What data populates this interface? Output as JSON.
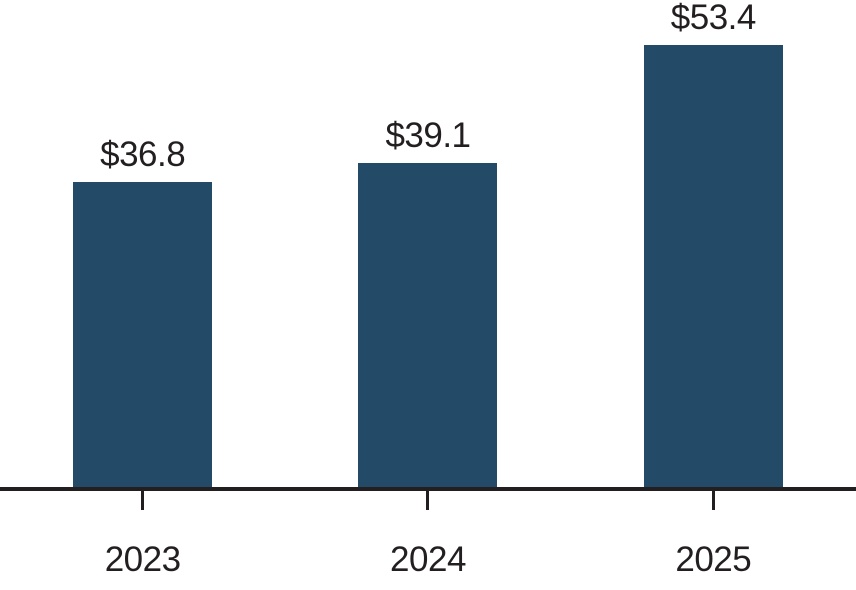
{
  "chart_data": {
    "type": "bar",
    "categories": [
      "2023",
      "2024",
      "2025"
    ],
    "values": [
      36.8,
      39.1,
      53.4
    ],
    "value_labels": [
      "$36.8",
      "$39.1",
      "$53.4"
    ],
    "ylim": [
      0,
      59
    ],
    "grid": false,
    "legend": null,
    "bar_color": "#234a67",
    "axis_color": "#231f20",
    "text_color": "#231f20",
    "background_color": "#ffffff"
  }
}
